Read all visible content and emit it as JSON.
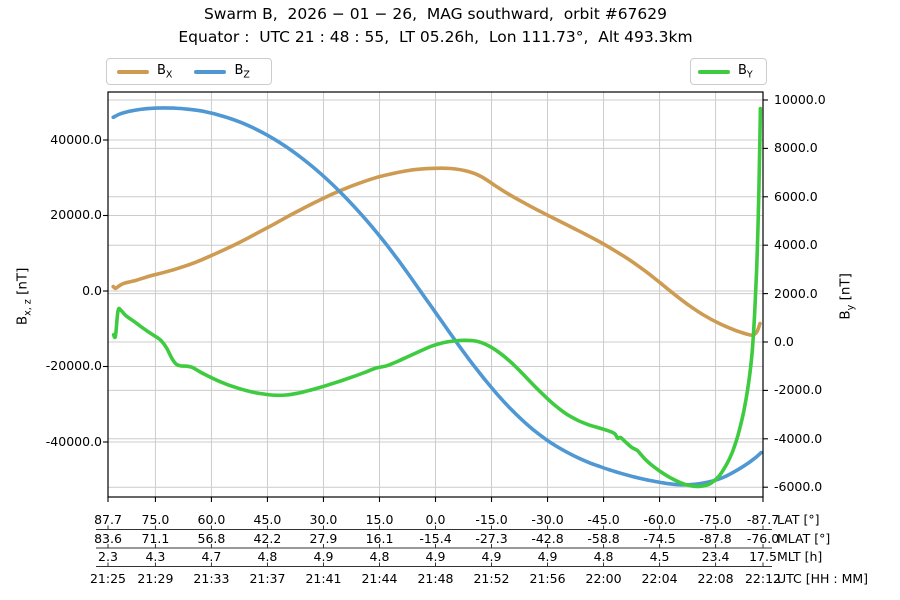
{
  "header": {
    "title": "Swarm B,  2026 − 01 − 26,  MAG southward,  orbit #67629",
    "subtitle": "Equator :  UTC 21 : 48 : 55,  LT 05.26h,  Lon 111.73°,  Alt 493.3km"
  },
  "legend": {
    "bx": {
      "main": "B",
      "sub": "X"
    },
    "bz": {
      "main": "B",
      "sub": "Z"
    },
    "by": {
      "main": "B",
      "sub": "Y"
    }
  },
  "axes": {
    "left": {
      "label_main": "B",
      "label_sub": "x, z",
      "label_unit": " [nT]",
      "ticks": [
        {
          "v": 40000,
          "label": "40000.0"
        },
        {
          "v": 20000,
          "label": "20000.0"
        },
        {
          "v": 0,
          "label": "0.0"
        },
        {
          "v": -20000,
          "label": "-20000.0"
        },
        {
          "v": -40000,
          "label": "-40000.0"
        }
      ]
    },
    "right": {
      "label_main": "B",
      "label_sub": "y",
      "label_unit": " [nT]",
      "ticks": [
        {
          "v": 10000,
          "label": "10000.0"
        },
        {
          "v": 8000,
          "label": "8000.0"
        },
        {
          "v": 6000,
          "label": "6000.0"
        },
        {
          "v": 4000,
          "label": "4000.0"
        },
        {
          "v": 2000,
          "label": "2000.0"
        },
        {
          "v": 0,
          "label": "0.0"
        },
        {
          "v": -2000,
          "label": "-2000.0"
        },
        {
          "v": -4000,
          "label": "-4000.0"
        },
        {
          "v": -6000,
          "label": "-6000.0"
        }
      ]
    },
    "bottom": {
      "tick_lats": [
        87.7,
        75,
        60,
        45,
        30,
        15,
        0,
        -15,
        -30,
        -45,
        -60,
        -75,
        -87.7
      ],
      "rows": [
        {
          "label": "LAT [°]",
          "values": [
            "87.7",
            "75.0",
            "60.0",
            "45.0",
            "30.0",
            "15.0",
            "0.0",
            "-15.0",
            "-30.0",
            "-45.0",
            "-60.0",
            "-75.0",
            "-87.7"
          ]
        },
        {
          "label": "MLAT [°]",
          "values": [
            "83.6",
            "71.1",
            "56.8",
            "42.2",
            "27.9",
            "16.1",
            "-15.4",
            "-27.3",
            "-42.8",
            "-58.8",
            "-74.5",
            "-87.8",
            "-76.0"
          ]
        },
        {
          "label": "MLT [h]",
          "values": [
            "2.3",
            "4.3",
            "4.7",
            "4.8",
            "4.9",
            "4.8",
            "4.9",
            "4.9",
            "4.9",
            "4.8",
            "4.5",
            "23.4",
            "17.5"
          ]
        },
        {
          "label": "UTC [HH : MM]",
          "values": [
            "21:25",
            "21:29",
            "21:33",
            "21:37",
            "21:41",
            "21:44",
            "21:48",
            "21:52",
            "21:56",
            "22:00",
            "22:04",
            "22:08",
            "22:12"
          ]
        }
      ]
    }
  },
  "colors": {
    "bx": "#cd9b51",
    "bz": "#4f98d3",
    "by": "#3ecb40",
    "grid": "#cccccc",
    "spine": "#000000",
    "separator": "#333333"
  },
  "chart_data": {
    "type": "line",
    "title": "Swarm B, 2026-01-26, MAG southward, orbit #67629",
    "xlabel_rows": [
      "LAT [°]",
      "MLAT [°]",
      "MLT [h]",
      "UTC [HH : MM]"
    ],
    "ylabel_left": "Bx,z [nT]",
    "ylabel_right": "By [nT]",
    "x_is_latitude_deg": true,
    "xlim": [
      87.7,
      -87.7
    ],
    "ylim_left": [
      -54570,
      52715
    ],
    "ylim_right": [
      -6405,
      10330
    ],
    "grid": true,
    "legend_position": "top",
    "series": [
      {
        "name": "BX",
        "axis": "left",
        "color": "#cd9b51",
        "points": [
          [
            86.3,
            1200
          ],
          [
            85.7,
            700
          ],
          [
            84.8,
            1300
          ],
          [
            83.5,
            2000
          ],
          [
            80,
            2900
          ],
          [
            76,
            4100
          ],
          [
            72,
            5100
          ],
          [
            68,
            6300
          ],
          [
            64,
            7700
          ],
          [
            60,
            9400
          ],
          [
            56,
            11200
          ],
          [
            52,
            13100
          ],
          [
            48,
            15200
          ],
          [
            44,
            17300
          ],
          [
            40,
            19500
          ],
          [
            36,
            21600
          ],
          [
            32,
            23600
          ],
          [
            28,
            25500
          ],
          [
            24,
            27200
          ],
          [
            20,
            28700
          ],
          [
            16,
            30000
          ],
          [
            12,
            31000
          ],
          [
            8,
            31800
          ],
          [
            4,
            32300
          ],
          [
            0,
            32500
          ],
          [
            -4,
            32450
          ],
          [
            -8,
            31850
          ],
          [
            -12,
            30450
          ],
          [
            -16,
            27900
          ],
          [
            -20,
            25400
          ],
          [
            -24,
            23200
          ],
          [
            -28,
            21100
          ],
          [
            -32,
            19100
          ],
          [
            -36,
            17100
          ],
          [
            -40,
            15100
          ],
          [
            -44,
            13000
          ],
          [
            -48,
            10700
          ],
          [
            -52,
            8200
          ],
          [
            -56,
            5400
          ],
          [
            -60,
            2300
          ],
          [
            -64,
            -900
          ],
          [
            -68,
            -3900
          ],
          [
            -72,
            -6500
          ],
          [
            -76,
            -8600
          ],
          [
            -80,
            -10300
          ],
          [
            -83,
            -11300
          ],
          [
            -84.8,
            -11700
          ],
          [
            -86,
            -10900
          ],
          [
            -86.9,
            -8600
          ]
        ]
      },
      {
        "name": "BZ",
        "axis": "left",
        "color": "#4f98d3",
        "points": [
          [
            86.3,
            46000
          ],
          [
            84.5,
            46900
          ],
          [
            82,
            47600
          ],
          [
            79,
            48100
          ],
          [
            76,
            48400
          ],
          [
            73,
            48500
          ],
          [
            70,
            48450
          ],
          [
            67,
            48250
          ],
          [
            64,
            47900
          ],
          [
            61,
            47350
          ],
          [
            58,
            46600
          ],
          [
            55,
            45700
          ],
          [
            52,
            44600
          ],
          [
            49,
            43300
          ],
          [
            46,
            41800
          ],
          [
            43,
            40100
          ],
          [
            40,
            38200
          ],
          [
            37,
            36100
          ],
          [
            34,
            33800
          ],
          [
            31,
            31300
          ],
          [
            28,
            28600
          ],
          [
            25,
            25700
          ],
          [
            22,
            22600
          ],
          [
            19,
            19300
          ],
          [
            16,
            15800
          ],
          [
            13,
            12100
          ],
          [
            10,
            8200
          ],
          [
            7,
            4100
          ],
          [
            4,
            -100
          ],
          [
            1,
            -4300
          ],
          [
            -2,
            -8500
          ],
          [
            -5,
            -12700
          ],
          [
            -8,
            -16800
          ],
          [
            -11,
            -20700
          ],
          [
            -14,
            -24400
          ],
          [
            -17,
            -27900
          ],
          [
            -20,
            -31100
          ],
          [
            -23,
            -34000
          ],
          [
            -26,
            -36600
          ],
          [
            -29,
            -38900
          ],
          [
            -32,
            -40900
          ],
          [
            -35,
            -42600
          ],
          [
            -38,
            -44100
          ],
          [
            -41,
            -45400
          ],
          [
            -44,
            -46500
          ],
          [
            -47,
            -47500
          ],
          [
            -50,
            -48400
          ],
          [
            -53,
            -49200
          ],
          [
            -56,
            -49900
          ],
          [
            -59,
            -50500
          ],
          [
            -62,
            -51000
          ],
          [
            -65,
            -51300
          ],
          [
            -68,
            -51300
          ],
          [
            -71,
            -51000
          ],
          [
            -74,
            -50400
          ],
          [
            -77,
            -49400
          ],
          [
            -80,
            -47900
          ],
          [
            -83,
            -46100
          ],
          [
            -85.5,
            -44300
          ],
          [
            -87.2,
            -42800
          ]
        ]
      },
      {
        "name": "BY",
        "axis": "right",
        "color": "#3ecb40",
        "points": [
          [
            86.2,
            300
          ],
          [
            85.7,
            250
          ],
          [
            85.0,
            1300
          ],
          [
            84.2,
            1300
          ],
          [
            83,
            1100
          ],
          [
            81,
            880
          ],
          [
            79,
            650
          ],
          [
            77,
            430
          ],
          [
            75,
            230
          ],
          [
            73.5,
            60
          ],
          [
            72,
            -250
          ],
          [
            70.5,
            -700
          ],
          [
            69.3,
            -930
          ],
          [
            68,
            -990
          ],
          [
            66.5,
            -1000
          ],
          [
            65,
            -1060
          ],
          [
            63,
            -1240
          ],
          [
            61,
            -1400
          ],
          [
            58,
            -1620
          ],
          [
            55,
            -1800
          ],
          [
            52,
            -1950
          ],
          [
            49,
            -2070
          ],
          [
            46,
            -2150
          ],
          [
            43,
            -2200
          ],
          [
            40,
            -2190
          ],
          [
            37,
            -2120
          ],
          [
            34,
            -2010
          ],
          [
            31,
            -1880
          ],
          [
            28,
            -1740
          ],
          [
            25,
            -1590
          ],
          [
            22,
            -1430
          ],
          [
            19,
            -1260
          ],
          [
            16,
            -1080
          ],
          [
            13,
            -980
          ],
          [
            10,
            -790
          ],
          [
            7,
            -580
          ],
          [
            4,
            -370
          ],
          [
            1,
            -170
          ],
          [
            -2,
            -30
          ],
          [
            -5,
            40
          ],
          [
            -8,
            70
          ],
          [
            -11,
            30
          ],
          [
            -14,
            -140
          ],
          [
            -17,
            -430
          ],
          [
            -20,
            -810
          ],
          [
            -23,
            -1260
          ],
          [
            -26,
            -1740
          ],
          [
            -29,
            -2200
          ],
          [
            -32,
            -2620
          ],
          [
            -35,
            -2970
          ],
          [
            -38,
            -3230
          ],
          [
            -41,
            -3420
          ],
          [
            -44,
            -3560
          ],
          [
            -46.5,
            -3680
          ],
          [
            -48,
            -3790
          ],
          [
            -48.8,
            -3980
          ],
          [
            -49.6,
            -3950
          ],
          [
            -51,
            -4150
          ],
          [
            -52.5,
            -4350
          ],
          [
            -54,
            -4480
          ],
          [
            -55,
            -4650
          ],
          [
            -56.5,
            -4900
          ],
          [
            -58,
            -5100
          ],
          [
            -60,
            -5330
          ],
          [
            -62,
            -5530
          ],
          [
            -64,
            -5700
          ],
          [
            -66,
            -5840
          ],
          [
            -68,
            -5930
          ],
          [
            -70,
            -5970
          ],
          [
            -72,
            -5940
          ],
          [
            -74,
            -5810
          ],
          [
            -76,
            -5530
          ],
          [
            -78,
            -5040
          ],
          [
            -79.5,
            -4550
          ],
          [
            -81,
            -3850
          ],
          [
            -82.5,
            -2900
          ],
          [
            -83.8,
            -1750
          ],
          [
            -84.8,
            -400
          ],
          [
            -85.5,
            1300
          ],
          [
            -86.1,
            3400
          ],
          [
            -86.5,
            5600
          ],
          [
            -86.8,
            7800
          ],
          [
            -87.0,
            9650
          ]
        ]
      }
    ]
  }
}
